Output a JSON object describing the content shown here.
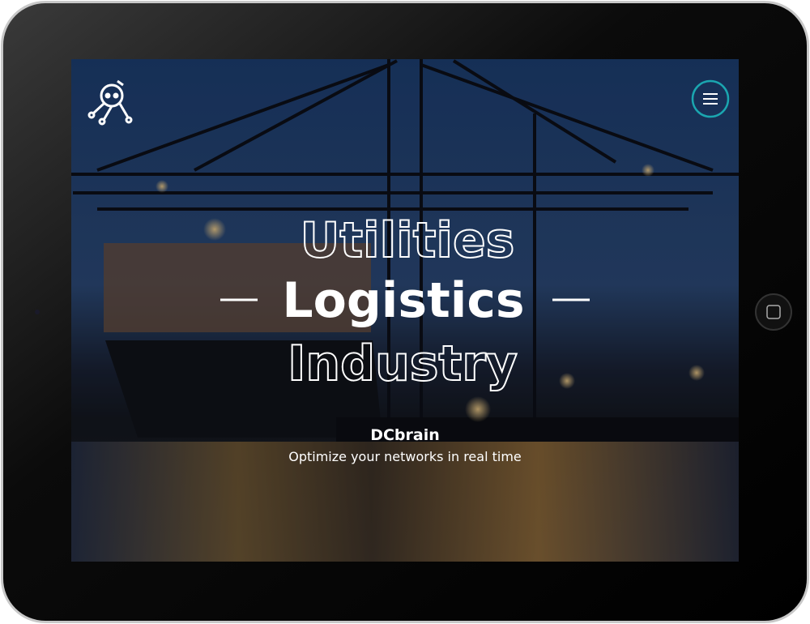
{
  "hero": {
    "words": [
      "Utilities",
      "Logistics",
      "Industry"
    ],
    "brand": "DCbrain",
    "tagline": "Optimize your networks in real time"
  }
}
